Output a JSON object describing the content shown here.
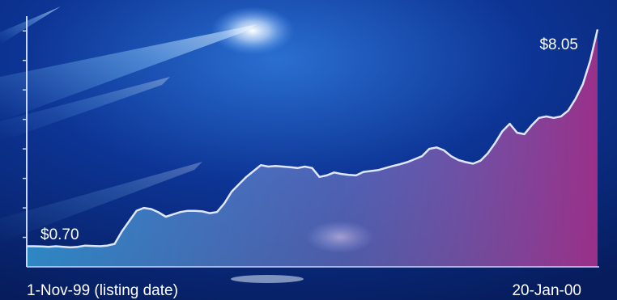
{
  "chart_data": {
    "type": "area",
    "title": "",
    "xlabel": "",
    "ylabel": "",
    "x_range": [
      "1-Nov-99",
      "20-Jan-00"
    ],
    "ylim": [
      0,
      8.5
    ],
    "grid": false,
    "x_labels": {
      "start": "1-Nov-99 (listing date)",
      "end": "20-Jan-00"
    },
    "annotations": {
      "start_value": "$0.70",
      "end_value": "$8.05"
    },
    "series": [
      {
        "values": [
          0.7,
          0.7,
          0.69,
          0.68,
          0.7,
          0.68,
          0.66,
          0.68,
          0.72,
          0.71,
          0.7,
          0.72,
          0.78,
          1.2,
          1.55,
          1.9,
          2.0,
          1.96,
          1.85,
          1.7,
          1.78,
          1.86,
          1.9,
          1.9,
          1.88,
          1.82,
          1.86,
          2.15,
          2.55,
          2.8,
          3.05,
          3.25,
          3.45,
          3.4,
          3.42,
          3.4,
          3.38,
          3.35,
          3.4,
          3.35,
          3.05,
          3.1,
          3.2,
          3.15,
          3.12,
          3.1,
          3.22,
          3.25,
          3.28,
          3.35,
          3.42,
          3.48,
          3.55,
          3.65,
          3.75,
          4.0,
          4.05,
          3.95,
          3.75,
          3.62,
          3.55,
          3.5,
          3.6,
          3.85,
          4.2,
          4.6,
          4.85,
          4.55,
          4.5,
          4.8,
          5.05,
          5.1,
          5.05,
          5.1,
          5.3,
          5.7,
          6.2,
          7.0,
          8.05
        ]
      }
    ],
    "colors": {
      "line": "#dfe6ff",
      "fill_start": "#3aa8e0",
      "fill_end": "#a2308a"
    }
  }
}
